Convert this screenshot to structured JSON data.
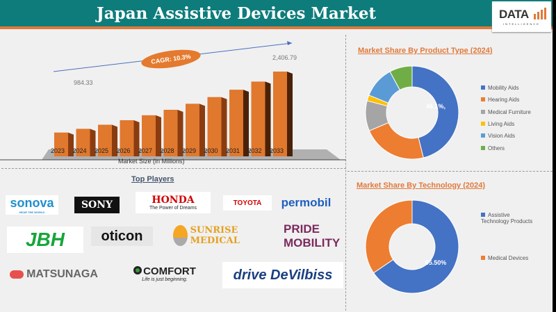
{
  "header": {
    "title": "Japan Assistive Devices Market",
    "logo_text": "DATA",
    "logo_sub": "INTELLIGENCE"
  },
  "colors": {
    "header": "#0e7c7b",
    "accent": "#e0793a"
  },
  "chart_data": [
    {
      "type": "bar",
      "title": "",
      "xlabel": "Market Size (in Millions)",
      "categories": [
        "2023",
        "2024",
        "2025",
        "2026",
        "2027",
        "2028",
        "2029",
        "2030",
        "2031",
        "2032",
        "2033"
      ],
      "values": [
        892,
        984.33,
        1086,
        1198,
        1321,
        1457,
        1607,
        1773,
        1956,
        2158,
        2406.79
      ],
      "data_labels": {
        "2024": "984.33",
        "2033": "2,406.79"
      },
      "annotation": "CAGR: 10.3%"
    },
    {
      "type": "pie",
      "title": "Market Share By Product Type (2024)",
      "labels": [
        "Mobility Aids",
        "Hearing Aids",
        "Medical Furniture",
        "Living Aids",
        "Vision Aids",
        "Others"
      ],
      "values": [
        46.1,
        22.5,
        10.5,
        2,
        11,
        7.9
      ],
      "colors": [
        "#4472c4",
        "#ed7d31",
        "#a5a5a5",
        "#ffc000",
        "#5b9bd5",
        "#70ad47"
      ],
      "data_label": "46.1%,"
    },
    {
      "type": "pie",
      "title": "Market Share By Technology (2024)",
      "labels": [
        "Assistive Technology Products",
        "Medical Devices"
      ],
      "values": [
        65.5,
        34.5
      ],
      "colors": [
        "#4472c4",
        "#ed7d31"
      ],
      "data_label": "65.50%"
    }
  ],
  "players": {
    "title": "Top Players",
    "logos": [
      "sonova",
      "SONY",
      "HONDA",
      "TOYOTA",
      "permobil",
      "JBH",
      "oticon",
      "SUNRISE MEDICAL",
      "PRIDE MOBILITY",
      "MATSUNAGA",
      "COMFORT",
      "drive DeVilbiss"
    ],
    "taglines": {
      "sonova": "HEAR THE WORLD",
      "honda": "The Power of Dreams",
      "comfort": "Life is just beginning."
    }
  }
}
